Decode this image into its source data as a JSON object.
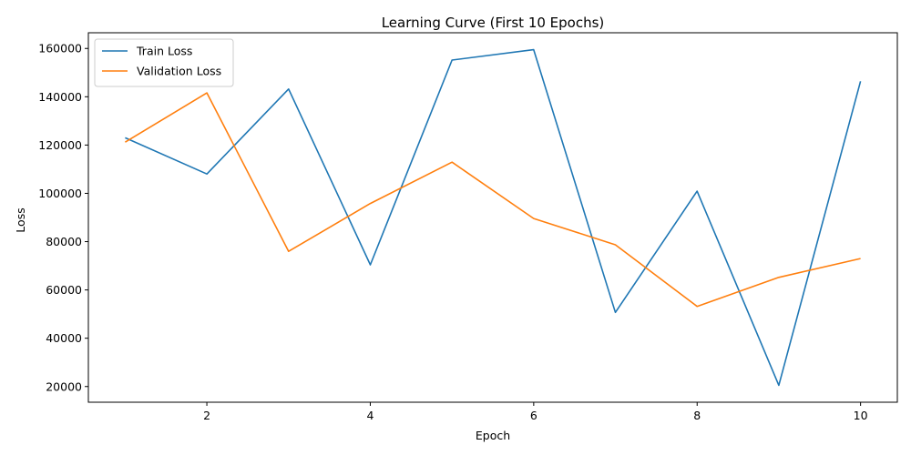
{
  "chart_data": {
    "type": "line",
    "title": "Learning Curve (First 10 Epochs)",
    "xlabel": "Epoch",
    "ylabel": "Loss",
    "x": [
      1,
      2,
      3,
      4,
      5,
      6,
      7,
      8,
      9,
      10
    ],
    "xlim": [
      0.55,
      10.45
    ],
    "ylim": [
      13500,
      166500
    ],
    "xticks": [
      2,
      4,
      6,
      8,
      10
    ],
    "yticks": [
      20000,
      40000,
      60000,
      80000,
      100000,
      120000,
      140000,
      160000
    ],
    "grid": false,
    "legend_position": "top-left",
    "series": [
      {
        "name": "Train Loss",
        "color": "#1f77b4",
        "values": [
          123000,
          108000,
          143200,
          70400,
          155200,
          159500,
          50700,
          100900,
          20500,
          146400
        ]
      },
      {
        "name": "Validation Loss",
        "color": "#ff7f0e",
        "values": [
          121200,
          141600,
          76000,
          95800,
          112900,
          89600,
          78700,
          53200,
          65200,
          73000
        ]
      }
    ]
  }
}
